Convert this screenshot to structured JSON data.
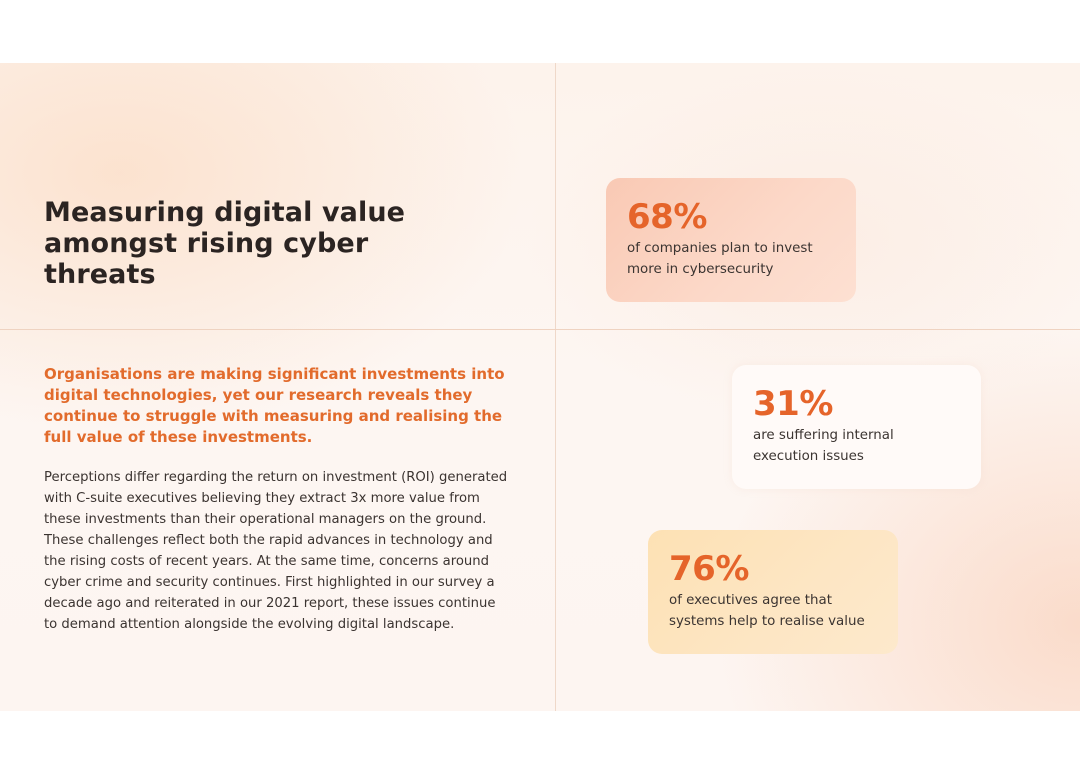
{
  "title": "Measuring digital value amongst rising cyber threats",
  "lead": "Organisations are making significant investments into digital technologies, yet our research reveals they continue to struggle with measuring and realising the full value of these investments.",
  "body": "Perceptions differ regarding the return on investment (ROI) generated with C-suite executives believing they extract 3x more value from these investments than their operational managers on the ground. These challenges reflect both the rapid advances in technology and the rising costs of recent years. At the same time, concerns around cyber crime and security continues. First highlighted in our survey a decade ago and reiterated in our 2021 report, these issues continue to demand attention alongside the evolving digital landscape.",
  "stats": [
    {
      "value": "68%",
      "text": "of companies plan to invest more in cybersecurity",
      "color": "#f9c9b4"
    },
    {
      "value": "31%",
      "text": "are suffering internal execution issues",
      "color": "#fffaf8"
    },
    {
      "value": "76%",
      "text": "of executives agree that systems help to realise value",
      "color": "#fde1b4"
    }
  ],
  "colors": {
    "accent": "#e5642a",
    "heading": "#2b2422",
    "text": "#3b3431",
    "background": "#fdf4ee"
  }
}
